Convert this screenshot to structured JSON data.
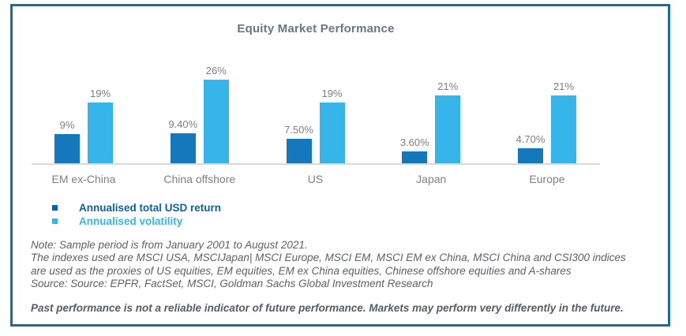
{
  "frame": {
    "border_color": "#176e9e"
  },
  "chart_data": {
    "type": "bar",
    "title": "Equity Market Performance",
    "categories": [
      "EM ex-China",
      "China offshore",
      "US",
      "Japan",
      "Europe"
    ],
    "series": [
      {
        "name": "Annualised total USD return",
        "color": "#1577bc",
        "values": [
          9,
          9.4,
          7.5,
          3.6,
          4.7
        ],
        "labels": [
          "9%",
          "9.40%",
          "7.50%",
          "3.60%",
          "4.70%"
        ]
      },
      {
        "name": "Annualised volatility",
        "color": "#36b5ea",
        "values": [
          19,
          26,
          19,
          21,
          21
        ],
        "labels": [
          "19%",
          "26%",
          "19%",
          "21%",
          "21%"
        ]
      }
    ],
    "ylim": [
      0,
      26
    ],
    "grid": false,
    "legend_position": "bottom-left",
    "axis_line_color": "#d9d9d9",
    "value_label_color": "#7f7f7f"
  },
  "legend": {
    "items": [
      {
        "label": "Annualised total USD return",
        "color": "#0a62aa"
      },
      {
        "label": "Annualised volatility",
        "color": "#38b6ea"
      }
    ]
  },
  "notes": {
    "line1": "Note: Sample period is from January 2001 to August 2021.",
    "line2": "The indexes used are MSCI USA, MSCIJapan| MSCI Europe, MSCI EM, MSCI EM ex China, MSCI China and CSI300 indices",
    "line3": "are used as the proxies of US equities, EM equities, EM ex China equities, Chinese offshore equities and A-shares",
    "line4": "Source: Source: EPFR, FactSet, MSCI, Goldman Sachs Global Investment Research"
  },
  "disclaimer": "Past performance is not a reliable indicator of future performance. Markets may perform very differently in the future."
}
